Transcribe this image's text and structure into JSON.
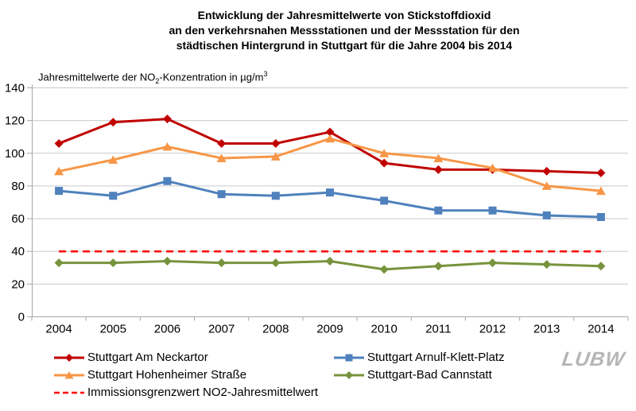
{
  "title": {
    "line1": "Entwicklung der Jahresmittelwerte von Stickstoffdioxid",
    "line2": "an den verkehrsnahen Messstationen und der Messstation für den",
    "line3": "städtischen Hintergrund in Stuttgart für die Jahre 2004 bis 2014"
  },
  "axis_title": {
    "prefix": "Jahresmittelwerte der NO",
    "sub": "2",
    "middle": "-Konzentration in µg/m",
    "sup": "3"
  },
  "chart_data": {
    "type": "line",
    "x": [
      2004,
      2005,
      2006,
      2007,
      2008,
      2009,
      2010,
      2011,
      2012,
      2013,
      2014
    ],
    "series": [
      {
        "name": "Stuttgart Am Neckartor",
        "color": "#C00000",
        "marker": "diamond",
        "dash": false,
        "values": [
          106,
          119,
          121,
          106,
          106,
          113,
          94,
          90,
          90,
          89,
          88
        ]
      },
      {
        "name": "Stuttgart Arnulf-Klett-Platz",
        "color": "#4F81BD",
        "marker": "square",
        "dash": false,
        "values": [
          77,
          74,
          83,
          75,
          74,
          76,
          71,
          65,
          65,
          62,
          61
        ]
      },
      {
        "name": "Stuttgart Hohenheimer Straße",
        "color": "#F79646",
        "marker": "triangle",
        "dash": false,
        "values": [
          89,
          96,
          104,
          97,
          98,
          109,
          100,
          97,
          91,
          80,
          77
        ]
      },
      {
        "name": "Stuttgart-Bad Cannstatt",
        "color": "#77933C",
        "marker": "diamond",
        "dash": false,
        "values": [
          33,
          33,
          34,
          33,
          33,
          34,
          29,
          31,
          33,
          32,
          31
        ]
      },
      {
        "name": "Immissionsgrenzwert NO2-Jahresmittelwert",
        "color": "#FF0000",
        "marker": "none",
        "dash": true,
        "values": [
          40,
          40,
          40,
          40,
          40,
          40,
          40,
          40,
          40,
          40,
          40
        ]
      }
    ],
    "legend_order": [
      0,
      1,
      2,
      3,
      4
    ],
    "ylim": [
      0,
      140
    ],
    "yticks": [
      0,
      20,
      40,
      60,
      80,
      100,
      120,
      140
    ],
    "grid": true,
    "legend_position": "bottom"
  },
  "colors": {
    "gridline": "#C9C9C9",
    "axis_line": "#A6A6A6",
    "logo": "#B5B5B5"
  },
  "logo": {
    "text": "LUBW"
  }
}
